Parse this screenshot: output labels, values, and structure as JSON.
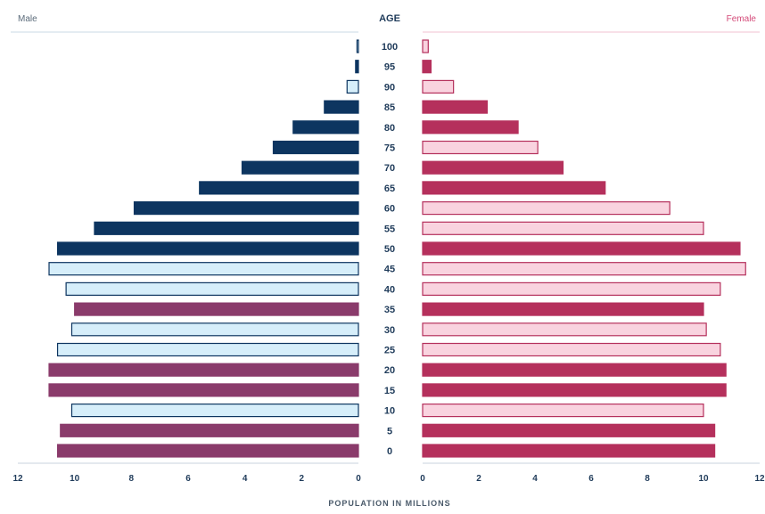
{
  "chart_data": {
    "type": "bar",
    "left_title": "Male",
    "right_title": "Female",
    "age_header": "AGE",
    "xlabel": "POPULATION IN MILLIONS",
    "x_ticks": [
      "12",
      "10",
      "8",
      "6",
      "4",
      "2",
      "0",
      "0",
      "2",
      "4",
      "6",
      "8",
      "10",
      "12"
    ],
    "xlim": [
      0,
      12
    ],
    "colors": {
      "male_dark": "#0d3560",
      "male_light": "#d6eefa",
      "male_mauve": "#8a3b6b",
      "female_dark": "#b5305c",
      "female_light": "#f9d3df",
      "outline": "#0d3560",
      "female_outline": "#b5305c"
    },
    "rows": [
      {
        "age": "100",
        "male": 0.05,
        "female": 0.2,
        "male_style": "light",
        "female_style": "light"
      },
      {
        "age": "95",
        "male": 0.1,
        "female": 0.3,
        "male_style": "dark",
        "female_style": "dark"
      },
      {
        "age": "90",
        "male": 0.4,
        "female": 1.1,
        "male_style": "light",
        "female_style": "light"
      },
      {
        "age": "85",
        "male": 1.2,
        "female": 2.3,
        "male_style": "dark",
        "female_style": "dark"
      },
      {
        "age": "80",
        "male": 2.3,
        "female": 3.4,
        "male_style": "dark",
        "female_style": "dark"
      },
      {
        "age": "75",
        "male": 3.0,
        "female": 4.1,
        "male_style": "dark",
        "female_style": "light"
      },
      {
        "age": "70",
        "male": 4.1,
        "female": 5.0,
        "male_style": "dark",
        "female_style": "dark"
      },
      {
        "age": "65",
        "male": 5.6,
        "female": 6.5,
        "male_style": "dark",
        "female_style": "dark"
      },
      {
        "age": "60",
        "male": 7.9,
        "female": 8.8,
        "male_style": "dark",
        "female_style": "light"
      },
      {
        "age": "55",
        "male": 9.3,
        "female": 10.0,
        "male_style": "dark",
        "female_style": "light"
      },
      {
        "age": "50",
        "male": 10.6,
        "female": 11.3,
        "male_style": "dark",
        "female_style": "dark"
      },
      {
        "age": "45",
        "male": 10.9,
        "female": 11.5,
        "male_style": "light",
        "female_style": "light"
      },
      {
        "age": "40",
        "male": 10.3,
        "female": 10.6,
        "male_style": "light",
        "female_style": "light"
      },
      {
        "age": "35",
        "male": 10.0,
        "female": 10.0,
        "male_style": "mauve",
        "female_style": "dark"
      },
      {
        "age": "30",
        "male": 10.1,
        "female": 10.1,
        "male_style": "light",
        "female_style": "light"
      },
      {
        "age": "25",
        "male": 10.6,
        "female": 10.6,
        "male_style": "light",
        "female_style": "light"
      },
      {
        "age": "20",
        "male": 10.9,
        "female": 10.8,
        "male_style": "mauve",
        "female_style": "dark"
      },
      {
        "age": "15",
        "male": 10.9,
        "female": 10.8,
        "male_style": "mauve",
        "female_style": "dark"
      },
      {
        "age": "10",
        "male": 10.1,
        "female": 10.0,
        "male_style": "light",
        "female_style": "light"
      },
      {
        "age": "5",
        "male": 10.5,
        "female": 10.4,
        "male_style": "mauve",
        "female_style": "dark"
      },
      {
        "age": "0",
        "male": 10.6,
        "female": 10.4,
        "male_style": "mauve",
        "female_style": "dark"
      }
    ]
  }
}
